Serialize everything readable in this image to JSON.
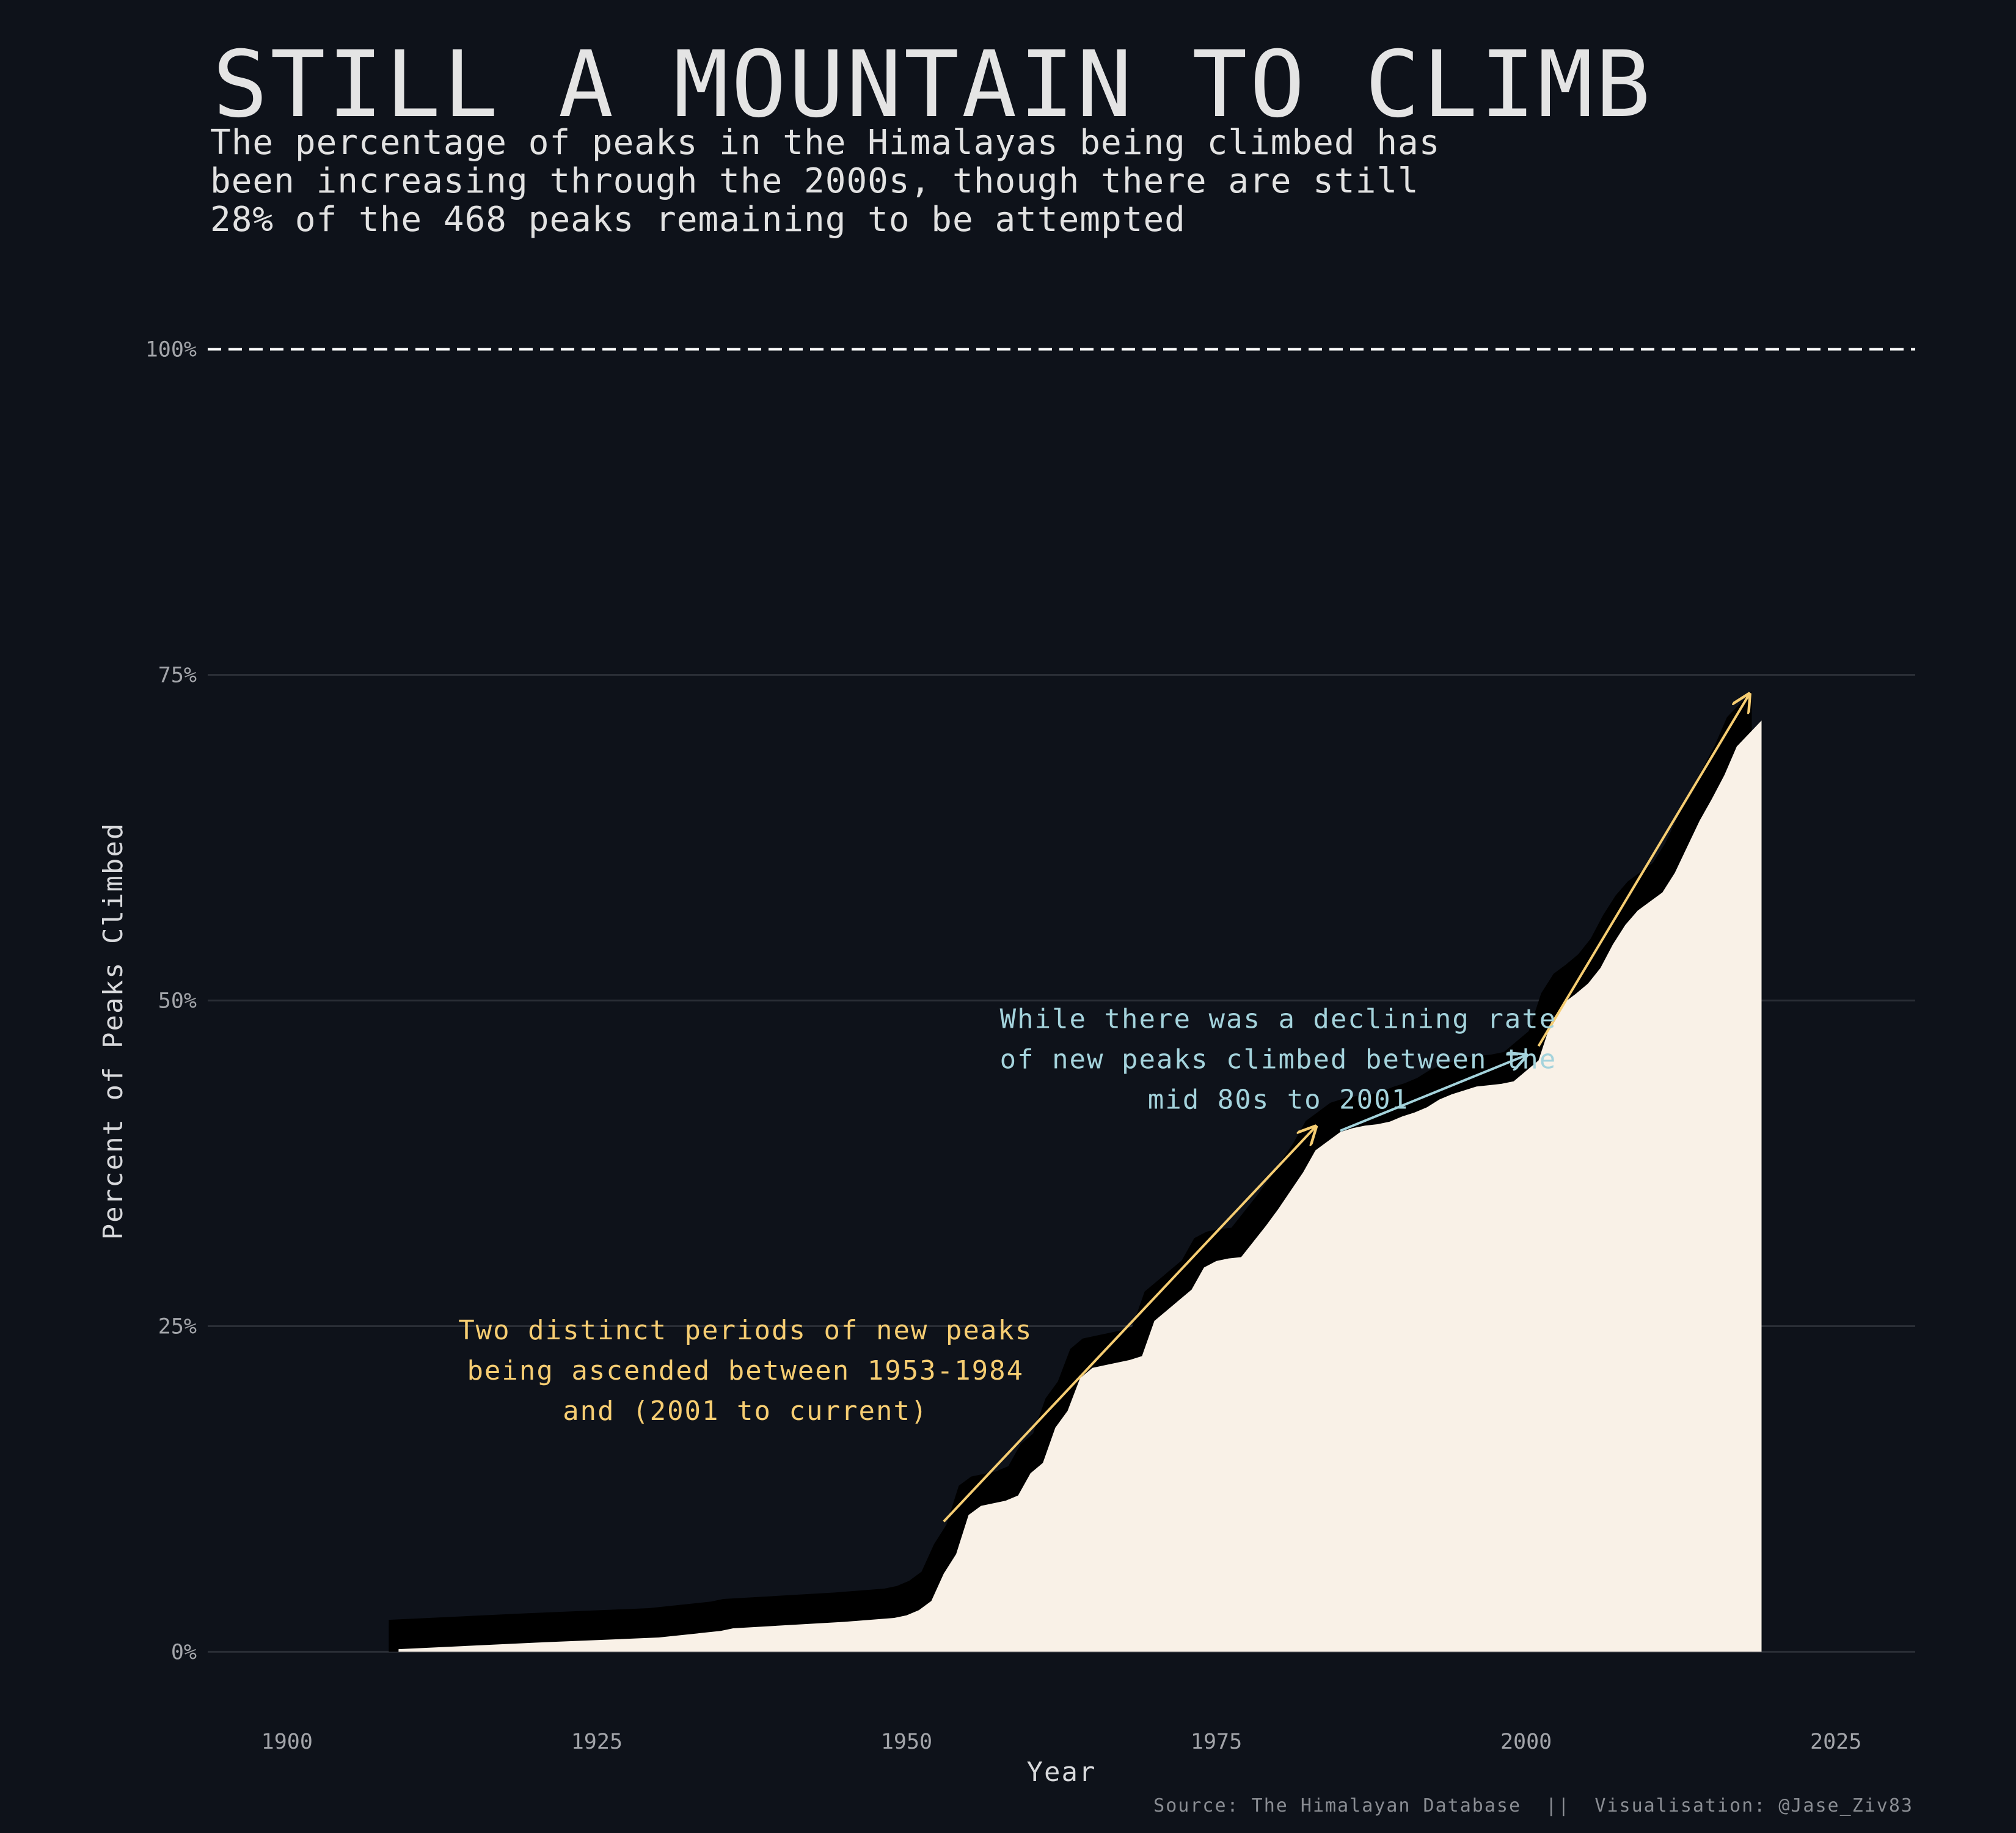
{
  "title": "STILL A MOUNTAIN TO CLIMB",
  "subtitle_lines": [
    "The percentage of peaks in the Himalayas being climbed has",
    "been increasing through the 2000s, though there are still",
    "28% of the 468 peaks remaining to be attempted"
  ],
  "caption": "Source: The Himalayan Database  ||  Visualisation: @Jase_Ziv83",
  "colors": {
    "background": "#0e121a",
    "area_fill": "#f9f1e7",
    "shadow": "#000000",
    "gold": "#f6cd72",
    "blue": "#a4d3dc",
    "grid": "#2a2e36",
    "reference_line": "#ffffff"
  },
  "chart_data": {
    "type": "area",
    "xlabel": "Year",
    "ylabel": "Percent of Peaks Climbed",
    "xlim": [
      1893.6,
      2031.4
    ],
    "ylim": [
      -5,
      105
    ],
    "x_ticks": [
      1900,
      1925,
      1950,
      1975,
      2000,
      2025
    ],
    "x_tick_labels": [
      "1900",
      "1925",
      "1950",
      "1975",
      "2000",
      "2025"
    ],
    "y_ticks": [
      0,
      25,
      50,
      75,
      100
    ],
    "y_tick_labels": [
      "0%",
      "25%",
      "50%",
      "75%",
      "100%"
    ],
    "reference_line": {
      "y": 100,
      "style": "dashed"
    },
    "grid": "horizontal",
    "series": [
      {
        "values": [
          [
            1909,
            0.2
          ],
          [
            1920,
            0.7
          ],
          [
            1930,
            1.1
          ],
          [
            1935,
            1.6
          ],
          [
            1936,
            1.8
          ],
          [
            1945,
            2.3
          ],
          [
            1949,
            2.6
          ],
          [
            1950,
            2.8
          ],
          [
            1951,
            3.2
          ],
          [
            1952,
            3.9
          ],
          [
            1953,
            6.0
          ],
          [
            1954,
            7.5
          ],
          [
            1955,
            10.5
          ],
          [
            1956,
            11.2
          ],
          [
            1957,
            11.4
          ],
          [
            1958,
            11.6
          ],
          [
            1959,
            12.0
          ],
          [
            1960,
            13.7
          ],
          [
            1961,
            14.5
          ],
          [
            1962,
            17.2
          ],
          [
            1963,
            18.5
          ],
          [
            1964,
            21.0
          ],
          [
            1965,
            21.8
          ],
          [
            1966,
            22.0
          ],
          [
            1967,
            22.2
          ],
          [
            1968,
            22.4
          ],
          [
            1969,
            22.7
          ],
          [
            1970,
            25.4
          ],
          [
            1971,
            26.2
          ],
          [
            1972,
            27.0
          ],
          [
            1973,
            27.8
          ],
          [
            1974,
            29.5
          ],
          [
            1975,
            30.0
          ],
          [
            1976,
            30.2
          ],
          [
            1977,
            30.3
          ],
          [
            1978,
            31.5
          ],
          [
            1979,
            32.7
          ],
          [
            1980,
            34.0
          ],
          [
            1981,
            35.4
          ],
          [
            1982,
            36.8
          ],
          [
            1983,
            38.5
          ],
          [
            1984,
            39.2
          ],
          [
            1985,
            39.9
          ],
          [
            1986,
            40.2
          ],
          [
            1987,
            40.4
          ],
          [
            1988,
            40.5
          ],
          [
            1989,
            40.7
          ],
          [
            1990,
            41.1
          ],
          [
            1991,
            41.4
          ],
          [
            1992,
            41.8
          ],
          [
            1993,
            42.4
          ],
          [
            1994,
            42.8
          ],
          [
            1995,
            43.1
          ],
          [
            1996,
            43.4
          ],
          [
            1997,
            43.5
          ],
          [
            1998,
            43.6
          ],
          [
            1999,
            43.8
          ],
          [
            2000,
            44.6
          ],
          [
            2001,
            45.4
          ],
          [
            2002,
            48.3
          ],
          [
            2003,
            49.8
          ],
          [
            2004,
            50.5
          ],
          [
            2005,
            51.3
          ],
          [
            2006,
            52.5
          ],
          [
            2007,
            54.3
          ],
          [
            2008,
            55.8
          ],
          [
            2009,
            56.9
          ],
          [
            2010,
            57.6
          ],
          [
            2011,
            58.3
          ],
          [
            2012,
            59.8
          ],
          [
            2013,
            61.8
          ],
          [
            2014,
            63.8
          ],
          [
            2015,
            65.5
          ],
          [
            2016,
            67.3
          ],
          [
            2017,
            69.5
          ],
          [
            2018,
            70.5
          ],
          [
            2019,
            71.5
          ]
        ]
      }
    ],
    "annotations": [
      {
        "lines": [
          "Two distinct periods of new peaks",
          "being ascended between 1953-1984",
          "and (2001 to current)"
        ],
        "color": "gold",
        "anchor_x": 1937,
        "anchor_y": 24,
        "arrows": [
          {
            "from": [
              1953,
              10
            ],
            "to": [
              1983,
              40.3
            ]
          },
          {
            "from": [
              2001,
              46.5
            ],
            "to": [
              2018,
              73.5
            ]
          }
        ]
      },
      {
        "lines": [
          "While there was a declining rate",
          "of new peaks climbed between the",
          "mid 80s to 2001"
        ],
        "color": "blue",
        "anchor_x": 1980,
        "anchor_y": 47.9,
        "arrows": [
          {
            "from": [
              1985,
              40
            ],
            "to": [
              2000,
              45.8
            ]
          }
        ]
      }
    ]
  }
}
